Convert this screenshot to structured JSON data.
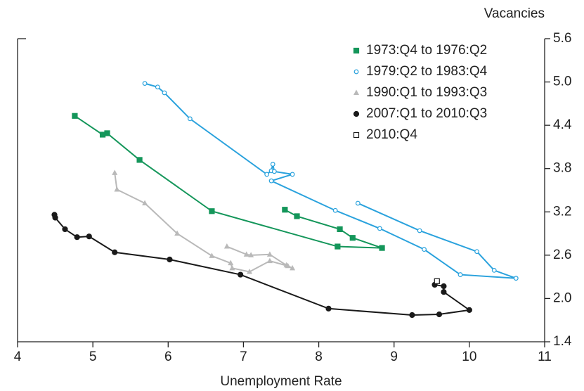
{
  "chart_data": {
    "type": "scatter",
    "y_axis_label": "Vacancies",
    "x_axis_label": "Unemployment Rate",
    "xlim": [
      4,
      11
    ],
    "xticks": [
      4,
      5,
      6,
      7,
      8,
      9,
      10,
      11
    ],
    "ylim": [
      1.4,
      5.6
    ],
    "yticks": [
      1.4,
      {
        "value": 2,
        "label": "2.0"
      },
      2.6,
      3.2,
      3.8,
      4.4,
      {
        "value": 5,
        "label": "5.0"
      },
      5.6
    ],
    "y_axis_side": "right",
    "legend": "top-right",
    "grid": false,
    "series": [
      {
        "name": "1973:Q4 to 1976:Q2",
        "color": "#14965a",
        "marker": "square",
        "line": true,
        "x": [
          4.76,
          5.13,
          5.19,
          5.62,
          6.58,
          8.25,
          8.84,
          8.45,
          8.28,
          7.71,
          7.55
        ],
        "y": [
          4.53,
          4.27,
          4.29,
          3.92,
          3.21,
          2.72,
          2.7,
          2.84,
          2.96,
          3.14,
          3.23
        ]
      },
      {
        "name": "1979:Q2 to 1983:Q4",
        "color": "#2aa2dd",
        "marker": "open-circle",
        "line": true,
        "x": [
          5.69,
          5.86,
          5.95,
          6.29,
          7.31,
          7.37,
          7.39,
          7.41,
          7.65,
          7.37,
          8.22,
          8.81,
          9.4,
          9.88,
          10.62,
          10.33,
          10.1,
          9.34,
          8.52
        ],
        "y": [
          4.98,
          4.93,
          4.85,
          4.49,
          3.72,
          3.77,
          3.86,
          3.76,
          3.72,
          3.63,
          3.22,
          2.97,
          2.68,
          2.33,
          2.28,
          2.39,
          2.65,
          2.94,
          3.32
        ]
      },
      {
        "name": "1990:Q1 to 1993:Q3",
        "color": "#b9b9b9",
        "marker": "triangle",
        "line": true,
        "x": [
          5.29,
          5.32,
          5.69,
          6.12,
          6.58,
          6.83,
          6.85,
          7.08,
          7.35,
          7.59,
          7.65,
          7.57,
          7.35,
          7.1,
          7.04,
          6.78
        ],
        "y": [
          3.74,
          3.51,
          3.32,
          2.9,
          2.59,
          2.49,
          2.42,
          2.37,
          2.52,
          2.45,
          2.42,
          2.46,
          2.61,
          2.6,
          2.61,
          2.72
        ]
      },
      {
        "name": "2007:Q1 to 2010:Q3",
        "color": "#1a1a1a",
        "marker": "circle",
        "line": true,
        "x": [
          4.49,
          4.5,
          4.63,
          4.79,
          4.95,
          5.29,
          6.02,
          6.96,
          8.13,
          9.24,
          9.6,
          10.0,
          9.66,
          9.66,
          9.54
        ],
        "y": [
          3.16,
          3.12,
          2.96,
          2.85,
          2.86,
          2.64,
          2.54,
          2.33,
          1.86,
          1.77,
          1.78,
          1.84,
          2.09,
          2.17,
          2.19
        ]
      },
      {
        "name": "2010:Q4",
        "color": "#1a1a1a",
        "marker": "open-square",
        "line": false,
        "x": [
          9.57
        ],
        "y": [
          2.24
        ]
      }
    ]
  }
}
